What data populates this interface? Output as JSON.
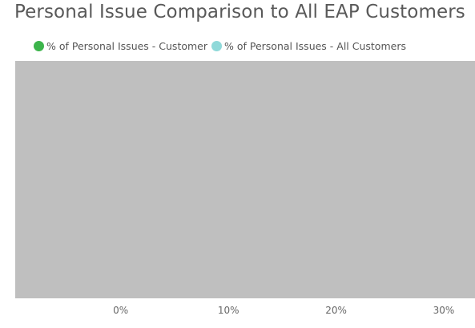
{
  "chart_data": {
    "type": "bar",
    "orientation": "horizontal",
    "title": "Personal Issue Comparison to All EAP Customers",
    "legend_position": "top-left",
    "series": [
      {
        "name": "% of Personal Issues - Customer",
        "color": "#3cb44b",
        "values": []
      },
      {
        "name": "% of Personal Issues - All Customers",
        "color": "#8fd9d9",
        "values": []
      }
    ],
    "categories": [],
    "x_ticks": [
      0,
      10,
      20,
      30
    ],
    "x_tick_labels": [
      "0%",
      "10%",
      "20%",
      "30%"
    ],
    "xlim": [
      -9.8,
      32.9
    ],
    "plot_background": "#bfbfbf",
    "grid": false
  }
}
